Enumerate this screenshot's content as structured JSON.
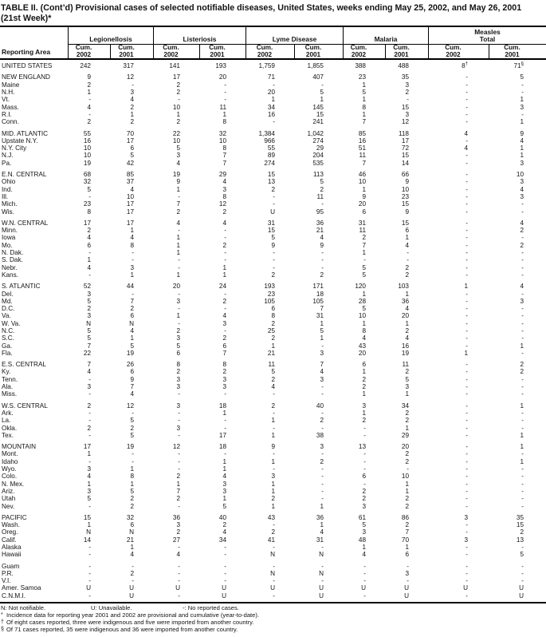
{
  "title": {
    "line1": "TABLE II. (Cont’d) Provisional cases of selected notifiable diseases, United States, weeks ending May 25, 2002, and May 26, 2001",
    "line2": "(21st Week)*"
  },
  "header": {
    "reporting_area": "Reporting Area",
    "cum_label": "Cum.",
    "year_2002": "2002",
    "year_2001": "2001",
    "groups": [
      {
        "label": "Legionellosis"
      },
      {
        "label": "Listeriosis"
      },
      {
        "label": "Lyme Disease"
      },
      {
        "label": "Malaria"
      },
      {
        "label": "Measles Total",
        "line1": "Measles",
        "line2": "Total"
      }
    ]
  },
  "rows": [
    {
      "area": "UNITED STATES",
      "gap": false,
      "values": [
        "242",
        "317",
        "141",
        "193",
        "1,759",
        "1,855",
        "388",
        "488",
        "8†",
        "71§"
      ]
    },
    {
      "area": "NEW ENGLAND",
      "gap": true,
      "values": [
        "9",
        "12",
        "17",
        "20",
        "71",
        "407",
        "23",
        "35",
        "-",
        "5"
      ]
    },
    {
      "area": "Maine",
      "gap": false,
      "values": [
        "2",
        "-",
        "2",
        "-",
        "-",
        "-",
        "1",
        "3",
        "-",
        "-"
      ]
    },
    {
      "area": "N.H.",
      "gap": false,
      "values": [
        "1",
        "3",
        "2",
        "-",
        "20",
        "5",
        "5",
        "2",
        "-",
        "-"
      ]
    },
    {
      "area": "Vt.",
      "gap": false,
      "values": [
        "-",
        "4",
        "-",
        "-",
        "1",
        "1",
        "1",
        "-",
        "-",
        "1"
      ]
    },
    {
      "area": "Mass.",
      "gap": false,
      "values": [
        "4",
        "2",
        "10",
        "11",
        "34",
        "145",
        "8",
        "15",
        "-",
        "3"
      ]
    },
    {
      "area": "R.I.",
      "gap": false,
      "values": [
        "-",
        "1",
        "1",
        "1",
        "16",
        "15",
        "1",
        "3",
        "-",
        "-"
      ]
    },
    {
      "area": "Conn.",
      "gap": false,
      "values": [
        "2",
        "2",
        "2",
        "8",
        "-",
        "241",
        "7",
        "12",
        "-",
        "1"
      ]
    },
    {
      "area": "MID. ATLANTIC",
      "gap": true,
      "values": [
        "55",
        "70",
        "22",
        "32",
        "1,384",
        "1,042",
        "85",
        "118",
        "4",
        "9"
      ]
    },
    {
      "area": "Upstate N.Y.",
      "gap": false,
      "values": [
        "16",
        "17",
        "10",
        "10",
        "966",
        "274",
        "16",
        "17",
        "-",
        "4"
      ]
    },
    {
      "area": "N.Y. City",
      "gap": false,
      "values": [
        "10",
        "6",
        "5",
        "8",
        "55",
        "29",
        "51",
        "72",
        "4",
        "1"
      ]
    },
    {
      "area": "N.J.",
      "gap": false,
      "values": [
        "10",
        "5",
        "3",
        "7",
        "89",
        "204",
        "11",
        "15",
        "-",
        "1"
      ]
    },
    {
      "area": "Pa.",
      "gap": false,
      "values": [
        "19",
        "42",
        "4",
        "7",
        "274",
        "535",
        "7",
        "14",
        "-",
        "3"
      ]
    },
    {
      "area": "E.N. CENTRAL",
      "gap": true,
      "values": [
        "68",
        "85",
        "19",
        "29",
        "15",
        "113",
        "46",
        "66",
        "-",
        "10"
      ]
    },
    {
      "area": "Ohio",
      "gap": false,
      "values": [
        "32",
        "37",
        "9",
        "4",
        "13",
        "5",
        "10",
        "9",
        "-",
        "3"
      ]
    },
    {
      "area": "Ind.",
      "gap": false,
      "values": [
        "5",
        "4",
        "1",
        "3",
        "2",
        "2",
        "1",
        "10",
        "-",
        "4"
      ]
    },
    {
      "area": "Ill.",
      "gap": false,
      "values": [
        "-",
        "10",
        "-",
        "8",
        "-",
        "11",
        "9",
        "23",
        "-",
        "3"
      ]
    },
    {
      "area": "Mich.",
      "gap": false,
      "values": [
        "23",
        "17",
        "7",
        "12",
        "-",
        "-",
        "20",
        "15",
        "-",
        "-"
      ]
    },
    {
      "area": "Wis.",
      "gap": false,
      "values": [
        "8",
        "17",
        "2",
        "2",
        "U",
        "95",
        "6",
        "9",
        "-",
        "-"
      ]
    },
    {
      "area": "W.N. CENTRAL",
      "gap": true,
      "values": [
        "17",
        "17",
        "4",
        "4",
        "31",
        "36",
        "31",
        "15",
        "-",
        "4"
      ]
    },
    {
      "area": "Minn.",
      "gap": false,
      "values": [
        "2",
        "1",
        "-",
        "-",
        "15",
        "21",
        "11",
        "6",
        "-",
        "2"
      ]
    },
    {
      "area": "Iowa",
      "gap": false,
      "values": [
        "4",
        "4",
        "1",
        "-",
        "5",
        "4",
        "2",
        "1",
        "-",
        "-"
      ]
    },
    {
      "area": "Mo.",
      "gap": false,
      "values": [
        "6",
        "8",
        "1",
        "2",
        "9",
        "9",
        "7",
        "4",
        "-",
        "2"
      ]
    },
    {
      "area": "N. Dak.",
      "gap": false,
      "values": [
        "-",
        "-",
        "1",
        "-",
        "-",
        "-",
        "1",
        "-",
        "-",
        "-"
      ]
    },
    {
      "area": "S. Dak.",
      "gap": false,
      "values": [
        "1",
        "-",
        "-",
        "-",
        "-",
        "-",
        "-",
        "-",
        "-",
        "-"
      ]
    },
    {
      "area": "Nebr.",
      "gap": false,
      "values": [
        "4",
        "3",
        "-",
        "1",
        "-",
        "-",
        "5",
        "2",
        "-",
        "-"
      ]
    },
    {
      "area": "Kans.",
      "gap": false,
      "values": [
        "-",
        "1",
        "1",
        "1",
        "2",
        "2",
        "5",
        "2",
        "-",
        "-"
      ]
    },
    {
      "area": "S. ATLANTIC",
      "gap": true,
      "values": [
        "52",
        "44",
        "20",
        "24",
        "193",
        "171",
        "120",
        "103",
        "1",
        "4"
      ]
    },
    {
      "area": "Del.",
      "gap": false,
      "values": [
        "3",
        "-",
        "-",
        "-",
        "23",
        "18",
        "1",
        "1",
        "-",
        "-"
      ]
    },
    {
      "area": "Md.",
      "gap": false,
      "values": [
        "5",
        "7",
        "3",
        "2",
        "105",
        "105",
        "28",
        "36",
        "-",
        "3"
      ]
    },
    {
      "area": "D.C.",
      "gap": false,
      "values": [
        "2",
        "2",
        "-",
        "-",
        "6",
        "7",
        "5",
        "4",
        "-",
        "-"
      ]
    },
    {
      "area": "Va.",
      "gap": false,
      "values": [
        "3",
        "6",
        "1",
        "4",
        "8",
        "31",
        "10",
        "20",
        "-",
        "-"
      ]
    },
    {
      "area": "W. Va.",
      "gap": false,
      "values": [
        "N",
        "N",
        "-",
        "3",
        "2",
        "1",
        "1",
        "1",
        "-",
        "-"
      ]
    },
    {
      "area": "N.C.",
      "gap": false,
      "values": [
        "5",
        "4",
        "2",
        "-",
        "25",
        "5",
        "8",
        "2",
        "-",
        "-"
      ]
    },
    {
      "area": "S.C.",
      "gap": false,
      "values": [
        "5",
        "1",
        "3",
        "2",
        "2",
        "1",
        "4",
        "4",
        "-",
        "-"
      ]
    },
    {
      "area": "Ga.",
      "gap": false,
      "values": [
        "7",
        "5",
        "5",
        "6",
        "1",
        "-",
        "43",
        "16",
        "-",
        "1"
      ]
    },
    {
      "area": "Fla.",
      "gap": false,
      "values": [
        "22",
        "19",
        "6",
        "7",
        "21",
        "3",
        "20",
        "19",
        "1",
        "-"
      ]
    },
    {
      "area": "E.S. CENTRAL",
      "gap": true,
      "values": [
        "7",
        "26",
        "8",
        "8",
        "11",
        "7",
        "6",
        "11",
        "-",
        "2"
      ]
    },
    {
      "area": "Ky.",
      "gap": false,
      "values": [
        "4",
        "6",
        "2",
        "2",
        "5",
        "4",
        "1",
        "2",
        "-",
        "2"
      ]
    },
    {
      "area": "Tenn.",
      "gap": false,
      "values": [
        "-",
        "9",
        "3",
        "3",
        "2",
        "3",
        "2",
        "5",
        "-",
        "-"
      ]
    },
    {
      "area": "Ala.",
      "gap": false,
      "values": [
        "3",
        "7",
        "3",
        "3",
        "4",
        "-",
        "2",
        "3",
        "-",
        "-"
      ]
    },
    {
      "area": "Miss.",
      "gap": false,
      "values": [
        "-",
        "4",
        "-",
        "-",
        "-",
        "-",
        "1",
        "1",
        "-",
        "-"
      ]
    },
    {
      "area": "W.S. CENTRAL",
      "gap": true,
      "values": [
        "2",
        "12",
        "3",
        "18",
        "2",
        "40",
        "3",
        "34",
        "-",
        "1"
      ]
    },
    {
      "area": "Ark.",
      "gap": false,
      "values": [
        "-",
        "-",
        "-",
        "1",
        "-",
        "-",
        "1",
        "2",
        "-",
        "-"
      ]
    },
    {
      "area": "La.",
      "gap": false,
      "values": [
        "-",
        "5",
        "-",
        "-",
        "1",
        "2",
        "2",
        "2",
        "-",
        "-"
      ]
    },
    {
      "area": "Okla.",
      "gap": false,
      "values": [
        "2",
        "2",
        "3",
        "-",
        "-",
        "-",
        "-",
        "1",
        "-",
        "-"
      ]
    },
    {
      "area": "Tex.",
      "gap": false,
      "values": [
        "-",
        "5",
        "-",
        "17",
        "1",
        "38",
        "-",
        "29",
        "-",
        "1"
      ]
    },
    {
      "area": "MOUNTAIN",
      "gap": true,
      "values": [
        "17",
        "19",
        "12",
        "18",
        "9",
        "3",
        "13",
        "20",
        "-",
        "1"
      ]
    },
    {
      "area": "Mont.",
      "gap": false,
      "values": [
        "1",
        "-",
        "-",
        "-",
        "-",
        "-",
        "-",
        "2",
        "-",
        "-"
      ]
    },
    {
      "area": "Idaho",
      "gap": false,
      "values": [
        "-",
        "-",
        "-",
        "1",
        "1",
        "2",
        "-",
        "2",
        "-",
        "1"
      ]
    },
    {
      "area": "Wyo.",
      "gap": false,
      "values": [
        "3",
        "1",
        "-",
        "1",
        "-",
        "-",
        "-",
        "-",
        "-",
        "-"
      ]
    },
    {
      "area": "Colo.",
      "gap": false,
      "values": [
        "4",
        "8",
        "2",
        "4",
        "3",
        "-",
        "6",
        "10",
        "-",
        "-"
      ]
    },
    {
      "area": "N. Mex.",
      "gap": false,
      "values": [
        "1",
        "1",
        "1",
        "3",
        "1",
        "-",
        "-",
        "1",
        "-",
        "-"
      ]
    },
    {
      "area": "Ariz.",
      "gap": false,
      "values": [
        "3",
        "5",
        "7",
        "3",
        "1",
        "-",
        "2",
        "1",
        "-",
        "-"
      ]
    },
    {
      "area": "Utah",
      "gap": false,
      "values": [
        "5",
        "2",
        "2",
        "1",
        "2",
        "-",
        "2",
        "2",
        "-",
        "-"
      ]
    },
    {
      "area": "Nev.",
      "gap": false,
      "values": [
        "-",
        "2",
        "-",
        "5",
        "1",
        "1",
        "3",
        "2",
        "-",
        "-"
      ]
    },
    {
      "area": "PACIFIC",
      "gap": true,
      "values": [
        "15",
        "32",
        "36",
        "40",
        "43",
        "36",
        "61",
        "86",
        "3",
        "35"
      ]
    },
    {
      "area": "Wash.",
      "gap": false,
      "values": [
        "1",
        "6",
        "3",
        "2",
        "-",
        "1",
        "5",
        "2",
        "-",
        "15"
      ]
    },
    {
      "area": "Oreg.",
      "gap": false,
      "values": [
        "N",
        "N",
        "2",
        "4",
        "2",
        "4",
        "3",
        "7",
        "-",
        "2"
      ]
    },
    {
      "area": "Calif.",
      "gap": false,
      "values": [
        "14",
        "21",
        "27",
        "34",
        "41",
        "31",
        "48",
        "70",
        "3",
        "13"
      ]
    },
    {
      "area": "Alaska",
      "gap": false,
      "values": [
        "-",
        "1",
        "-",
        "-",
        "-",
        "-",
        "1",
        "1",
        "-",
        "-"
      ]
    },
    {
      "area": "Hawaii",
      "gap": false,
      "values": [
        "-",
        "4",
        "4",
        "-",
        "N",
        "N",
        "4",
        "6",
        "-",
        "5"
      ]
    },
    {
      "area": "Guam",
      "gap": true,
      "values": [
        "-",
        "-",
        "-",
        "-",
        "-",
        "-",
        "-",
        "-",
        "-",
        "-"
      ]
    },
    {
      "area": "P.R.",
      "gap": false,
      "values": [
        "-",
        "2",
        "-",
        "-",
        "N",
        "N",
        "-",
        "3",
        "-",
        "-"
      ]
    },
    {
      "area": "V.I.",
      "gap": false,
      "values": [
        "-",
        "-",
        "-",
        "-",
        "-",
        "-",
        "-",
        "-",
        "-",
        "-"
      ]
    },
    {
      "area": "Amer. Samoa",
      "gap": false,
      "values": [
        "U",
        "U",
        "U",
        "U",
        "U",
        "U",
        "U",
        "U",
        "U",
        "U"
      ]
    },
    {
      "area": "C.N.M.I.",
      "gap": false,
      "values": [
        "-",
        "U",
        "-",
        "U",
        "-",
        "U",
        "-",
        "U",
        "-",
        "U"
      ]
    }
  ],
  "footnotes": {
    "legend": [
      "N: Not notifiable.",
      "U: Unavailable.",
      "-: No reported cases."
    ],
    "notes": [
      {
        "sym": "*",
        "text": "Incidence data for reporting year 2001 and 2002 are provisional and cumulative (year-to-date)."
      },
      {
        "sym": "†",
        "text": "Of eight cases reported, three were indigenous and five were imported from another country."
      },
      {
        "sym": "§",
        "text": "Of 71 cases reported, 35 were indigenous and 36 were imported from another country."
      }
    ]
  }
}
